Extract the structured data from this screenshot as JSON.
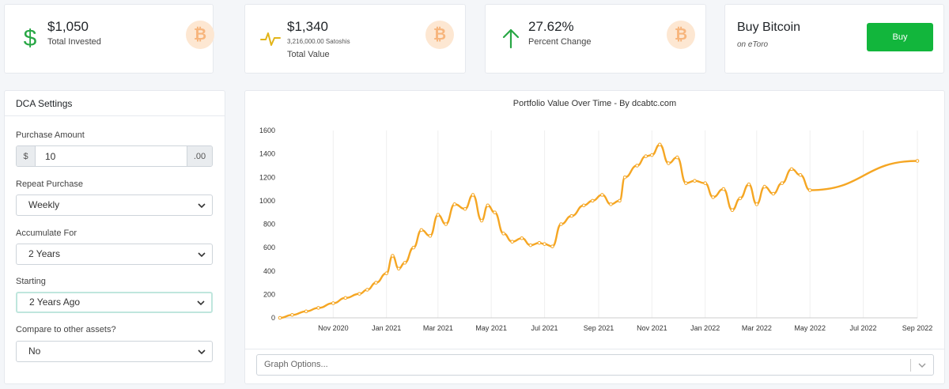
{
  "stats": [
    {
      "value": "$1,050",
      "label": "Total Invested",
      "icon": "dollar-icon",
      "color": "#28a745"
    },
    {
      "value": "$1,340",
      "sub": "3,216,000.00 Satoshis",
      "label": "Total Value",
      "icon": "pulse-icon",
      "color": "#e2b418"
    },
    {
      "value": "27.62%",
      "label": "Percent Change",
      "icon": "arrow-up-icon",
      "color": "#28a745"
    }
  ],
  "badge_glyph": "₿",
  "buy": {
    "title": "Buy Bitcoin",
    "subtitle": "on eToro",
    "button": "Buy"
  },
  "settings": {
    "title": "DCA Settings",
    "purchase_amount": {
      "label": "Purchase Amount",
      "prefix": "$",
      "value": "10",
      "suffix": ".00"
    },
    "repeat": {
      "label": "Repeat Purchase",
      "value": "Weekly"
    },
    "accumulate": {
      "label": "Accumulate For",
      "value": "2 Years"
    },
    "starting": {
      "label": "Starting",
      "value": "2 Years Ago"
    },
    "compare": {
      "label": "Compare to other assets?",
      "value": "No"
    }
  },
  "graph_options_placeholder": "Graph Options...",
  "chart_data": {
    "type": "line",
    "title": "Portfolio Value Over Time - By dcabtc.com",
    "xlabel": "",
    "ylabel": "",
    "ylim": [
      0,
      1600
    ],
    "yticks": [
      0,
      200,
      400,
      600,
      800,
      1000,
      1200,
      1400,
      1600
    ],
    "xlim": [
      "2020-09-01",
      "2022-09-01"
    ],
    "xticks": [
      {
        "date": "2020-11-01",
        "label": "Nov 2020"
      },
      {
        "date": "2021-01-01",
        "label": "Jan 2021"
      },
      {
        "date": "2021-03-01",
        "label": "Mar 2021"
      },
      {
        "date": "2021-05-01",
        "label": "May 2021"
      },
      {
        "date": "2021-07-01",
        "label": "Jul 2021"
      },
      {
        "date": "2021-09-01",
        "label": "Sep 2021"
      },
      {
        "date": "2021-11-01",
        "label": "Nov 2021"
      },
      {
        "date": "2022-01-01",
        "label": "Jan 2022"
      },
      {
        "date": "2022-03-01",
        "label": "Mar 2022"
      },
      {
        "date": "2022-05-01",
        "label": "May 2022"
      },
      {
        "date": "2022-07-01",
        "label": "Jul 2022"
      },
      {
        "date": "2022-09-01",
        "label": "Sep 2022"
      }
    ],
    "grid": "vertical",
    "color": "#f5a623",
    "series": [
      {
        "x": [
          "2020-09-01",
          "2020-09-15",
          "2020-10-01",
          "2020-10-15",
          "2020-11-01",
          "2020-11-15",
          "2020-12-01",
          "2020-12-10",
          "2020-12-20",
          "2021-01-01",
          "2021-01-08",
          "2021-01-15",
          "2021-01-22",
          "2021-02-01",
          "2021-02-10",
          "2021-02-20",
          "2021-03-01",
          "2021-03-10",
          "2021-03-20",
          "2021-04-01",
          "2021-04-10",
          "2021-04-20",
          "2021-04-27",
          "2021-05-05",
          "2021-05-15",
          "2021-05-25",
          "2021-06-05",
          "2021-06-15",
          "2021-06-25",
          "2021-07-01",
          "2021-07-10",
          "2021-07-20",
          "2021-08-01",
          "2021-08-15",
          "2021-08-25",
          "2021-09-05",
          "2021-09-15",
          "2021-09-25",
          "2021-10-01",
          "2021-10-15",
          "2021-10-25",
          "2021-11-01",
          "2021-11-10",
          "2021-11-20",
          "2021-11-30",
          "2021-12-10",
          "2021-12-20",
          "2022-01-01",
          "2022-01-10",
          "2022-01-22",
          "2022-02-01",
          "2022-02-10",
          "2022-02-20",
          "2022-03-01",
          "2022-03-10",
          "2022-03-20",
          "2022-03-30",
          "2022-04-10",
          "2022-04-20",
          "2022-05-01",
          "2022-09-01"
        ],
        "y": [
          0,
          25,
          55,
          85,
          125,
          170,
          205,
          240,
          300,
          380,
          530,
          420,
          470,
          600,
          750,
          700,
          880,
          800,
          970,
          930,
          1050,
          830,
          960,
          900,
          720,
          650,
          680,
          620,
          640,
          630,
          610,
          800,
          870,
          960,
          1000,
          1050,
          970,
          1000,
          1200,
          1300,
          1380,
          1390,
          1480,
          1320,
          1370,
          1150,
          1170,
          1150,
          1030,
          1100,
          920,
          1020,
          1140,
          970,
          1120,
          1060,
          1150,
          1270,
          1220,
          1090,
          1340
        ]
      }
    ]
  }
}
